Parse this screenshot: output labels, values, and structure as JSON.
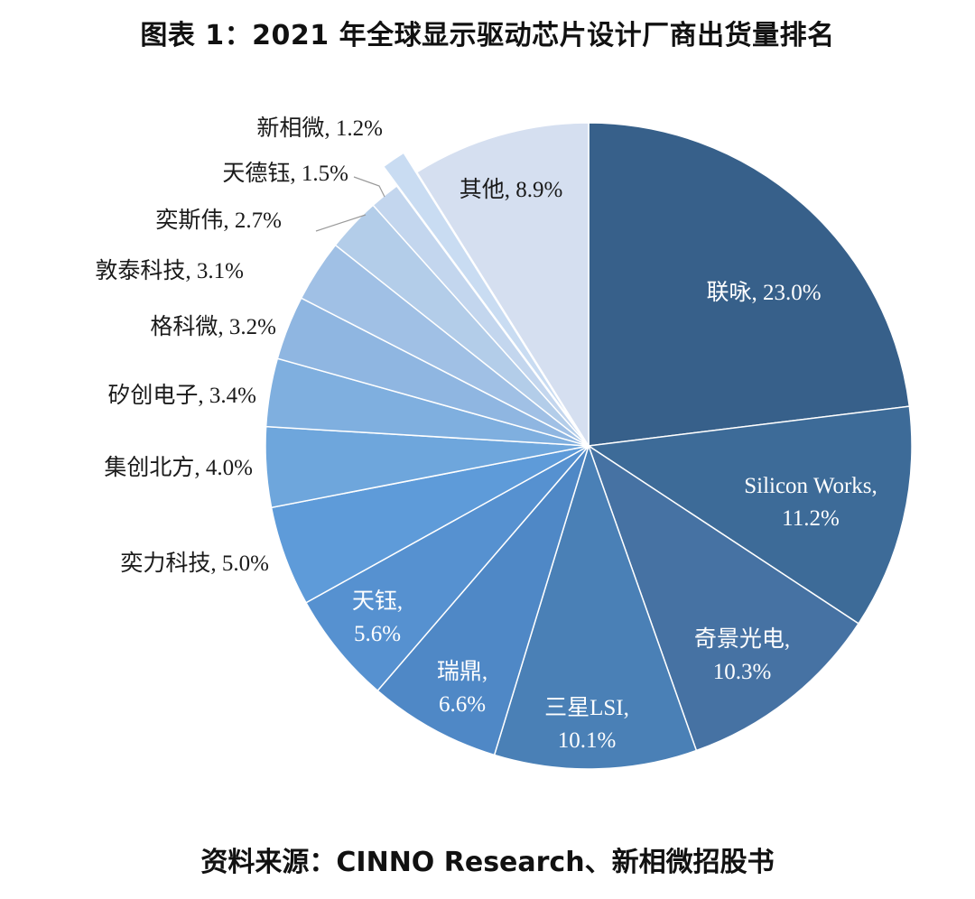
{
  "title": "图表 1：2021 年全球显示驱动芯片设计厂商出货量排名",
  "source": "资料来源：CINNO Research、新相微招股书",
  "chart_data": {
    "type": "pie",
    "title": "图表 1：2021 年全球显示驱动芯片设计厂商出货量排名",
    "unit": "%",
    "slices": [
      {
        "label": "联咏",
        "value": 23.0,
        "value_text": "23.0%",
        "color": "#37608a"
      },
      {
        "label": "Silicon Works",
        "value": 11.2,
        "value_text": "11.2%",
        "color": "#3d6b98"
      },
      {
        "label": "奇景光电",
        "value": 10.3,
        "value_text": "10.3%",
        "color": "#4672a3"
      },
      {
        "label": "三星LSI",
        "value": 10.1,
        "value_text": "10.1%",
        "color": "#4a80b6"
      },
      {
        "label": "瑞鼎",
        "value": 6.6,
        "value_text": "6.6%",
        "color": "#4f88c6"
      },
      {
        "label": "天钰",
        "value": 5.6,
        "value_text": "5.6%",
        "color": "#5691d0"
      },
      {
        "label": "奕力科技",
        "value": 5.0,
        "value_text": "5.0%",
        "color": "#5e9bd9"
      },
      {
        "label": "集创北方",
        "value": 4.0,
        "value_text": "4.0%",
        "color": "#6ea6dc"
      },
      {
        "label": "矽创电子",
        "value": 3.4,
        "value_text": "3.4%",
        "color": "#7fafdf"
      },
      {
        "label": "格科微",
        "value": 3.2,
        "value_text": "3.2%",
        "color": "#8fb6e1"
      },
      {
        "label": "敦泰科技",
        "value": 3.1,
        "value_text": "3.1%",
        "color": "#a0c0e5"
      },
      {
        "label": "奕斯伟",
        "value": 2.7,
        "value_text": "2.7%",
        "color": "#b3cde9"
      },
      {
        "label": "天德钰",
        "value": 1.5,
        "value_text": "1.5%",
        "color": "#c3d6ee"
      },
      {
        "label": "新相微",
        "value": 1.2,
        "value_text": "1.2%",
        "color": "#c9dcf2",
        "exploded": true
      },
      {
        "label": "其他",
        "value": 8.9,
        "value_text": "8.9%",
        "color": "#d5dff0"
      }
    ]
  }
}
